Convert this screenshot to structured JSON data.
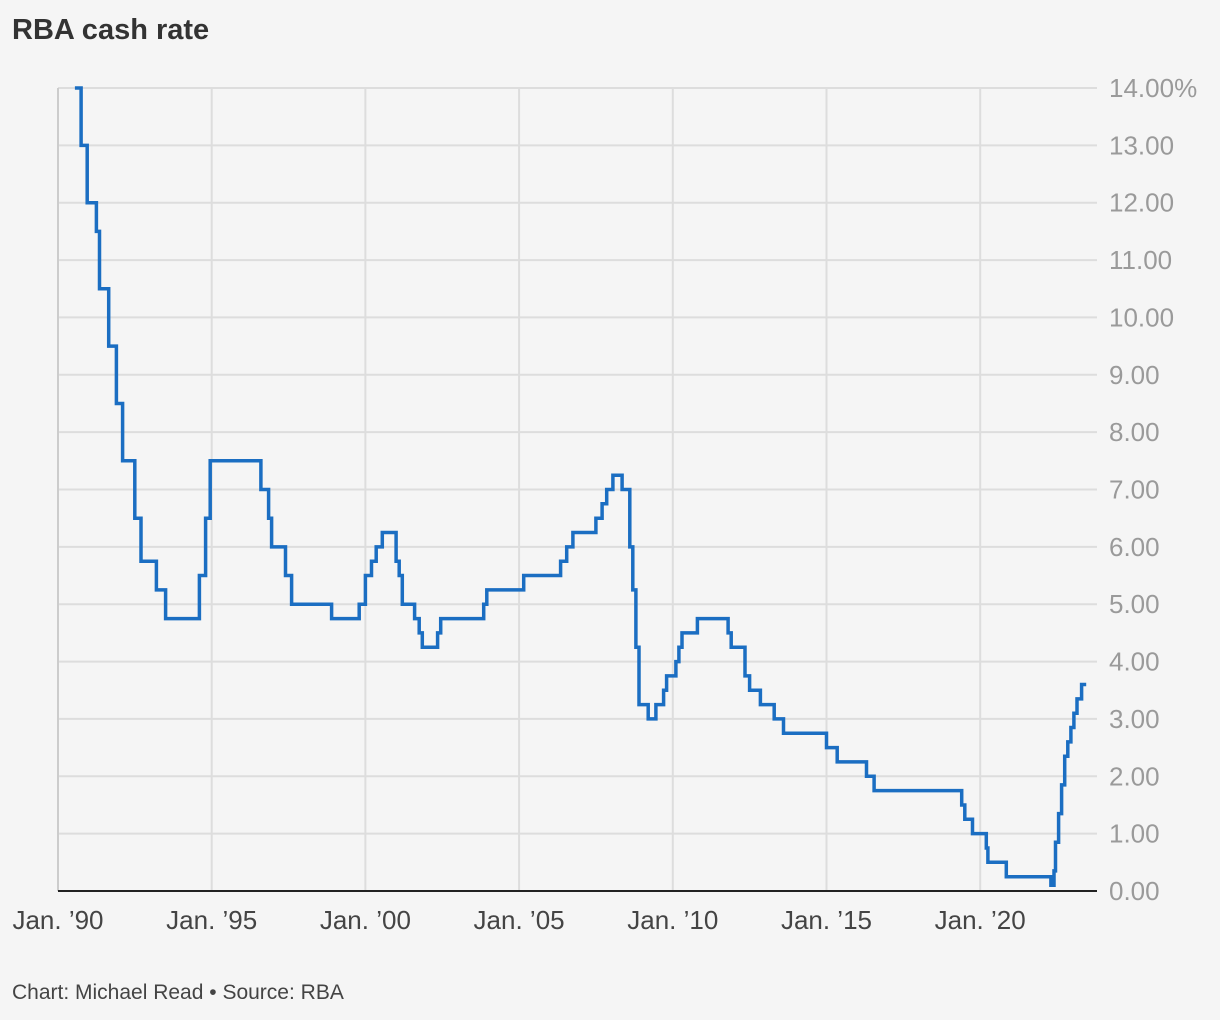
{
  "chart_data": {
    "type": "line",
    "step": true,
    "title": "RBA cash rate",
    "xlabel": "",
    "ylabel": "",
    "footer": "Chart: Michael Read • Source: RBA",
    "xlim": [
      1990.0,
      2023.8
    ],
    "ylim": [
      0,
      14
    ],
    "y_unit_suffix": "%",
    "grid": true,
    "yaxis_side": "right",
    "x_ticks": [
      {
        "value": 1990,
        "label": "Jan. ’90"
      },
      {
        "value": 1995,
        "label": "Jan. ’95"
      },
      {
        "value": 2000,
        "label": "Jan. ’00"
      },
      {
        "value": 2005,
        "label": "Jan. ’05"
      },
      {
        "value": 2010,
        "label": "Jan. ’10"
      },
      {
        "value": 2015,
        "label": "Jan. ’15"
      },
      {
        "value": 2020,
        "label": "Jan. ’20"
      }
    ],
    "y_ticks": [
      {
        "value": 0,
        "label": "0.00"
      },
      {
        "value": 1,
        "label": "1.00"
      },
      {
        "value": 2,
        "label": "2.00"
      },
      {
        "value": 3,
        "label": "3.00"
      },
      {
        "value": 4,
        "label": "4.00"
      },
      {
        "value": 5,
        "label": "5.00"
      },
      {
        "value": 6,
        "label": "6.00"
      },
      {
        "value": 7,
        "label": "7.00"
      },
      {
        "value": 8,
        "label": "8.00"
      },
      {
        "value": 9,
        "label": "9.00"
      },
      {
        "value": 10,
        "label": "10.00"
      },
      {
        "value": 11,
        "label": "11.00"
      },
      {
        "value": 12,
        "label": "12.00"
      },
      {
        "value": 13,
        "label": "13.00"
      },
      {
        "value": 14,
        "label": "14.00%"
      }
    ],
    "series": [
      {
        "color": "#1b6ec2",
        "x": [
          1990.55,
          1990.75,
          1990.95,
          1991.25,
          1991.35,
          1991.65,
          1991.9,
          1992.1,
          1992.5,
          1992.7,
          1993.2,
          1993.5,
          1994.6,
          1994.8,
          1994.95,
          1996.6,
          1996.85,
          1996.95,
          1997.4,
          1997.6,
          1998.9,
          1999.8,
          2000.0,
          2000.2,
          2000.35,
          2000.55,
          2001.0,
          2001.1,
          2001.2,
          2001.6,
          2001.75,
          2001.85,
          2002.35,
          2002.45,
          2003.85,
          2003.95,
          2005.15,
          2006.35,
          2006.55,
          2006.75,
          2007.5,
          2007.7,
          2007.85,
          2008.05,
          2008.35,
          2008.6,
          2008.7,
          2008.8,
          2008.9,
          2009.2,
          2009.45,
          2009.7,
          2009.8,
          2009.85,
          2010.1,
          2010.2,
          2010.3,
          2010.8,
          2011.8,
          2011.9,
          2012.35,
          2012.5,
          2012.85,
          2013.3,
          2013.6,
          2015.0,
          2015.35,
          2016.3,
          2016.55,
          2019.4,
          2019.5,
          2019.75,
          2020.2,
          2020.25,
          2020.85,
          2022.3,
          2022.4,
          2022.45,
          2022.55,
          2022.65,
          2022.75,
          2022.85,
          2022.95,
          2023.05,
          2023.15,
          2023.3,
          2023.45
        ],
        "y": [
          14.0,
          13.0,
          12.0,
          11.5,
          10.5,
          9.5,
          8.5,
          7.5,
          6.5,
          5.75,
          5.25,
          4.75,
          5.5,
          6.5,
          7.5,
          7.0,
          6.5,
          6.0,
          5.5,
          5.0,
          4.75,
          5.0,
          5.5,
          5.75,
          6.0,
          6.25,
          5.75,
          5.5,
          5.0,
          4.75,
          4.5,
          4.25,
          4.5,
          4.75,
          5.0,
          5.25,
          5.5,
          5.75,
          6.0,
          6.25,
          6.5,
          6.75,
          7.0,
          7.25,
          7.0,
          6.0,
          5.25,
          4.25,
          3.25,
          3.0,
          3.25,
          3.5,
          3.75,
          3.75,
          4.0,
          4.25,
          4.5,
          4.75,
          4.5,
          4.25,
          3.75,
          3.5,
          3.25,
          3.0,
          2.75,
          2.5,
          2.25,
          2.0,
          1.75,
          1.5,
          1.25,
          1.0,
          0.75,
          0.5,
          0.25,
          0.1,
          0.35,
          0.85,
          1.35,
          1.85,
          2.35,
          2.6,
          2.85,
          3.1,
          3.35,
          3.6,
          3.6
        ]
      }
    ]
  }
}
